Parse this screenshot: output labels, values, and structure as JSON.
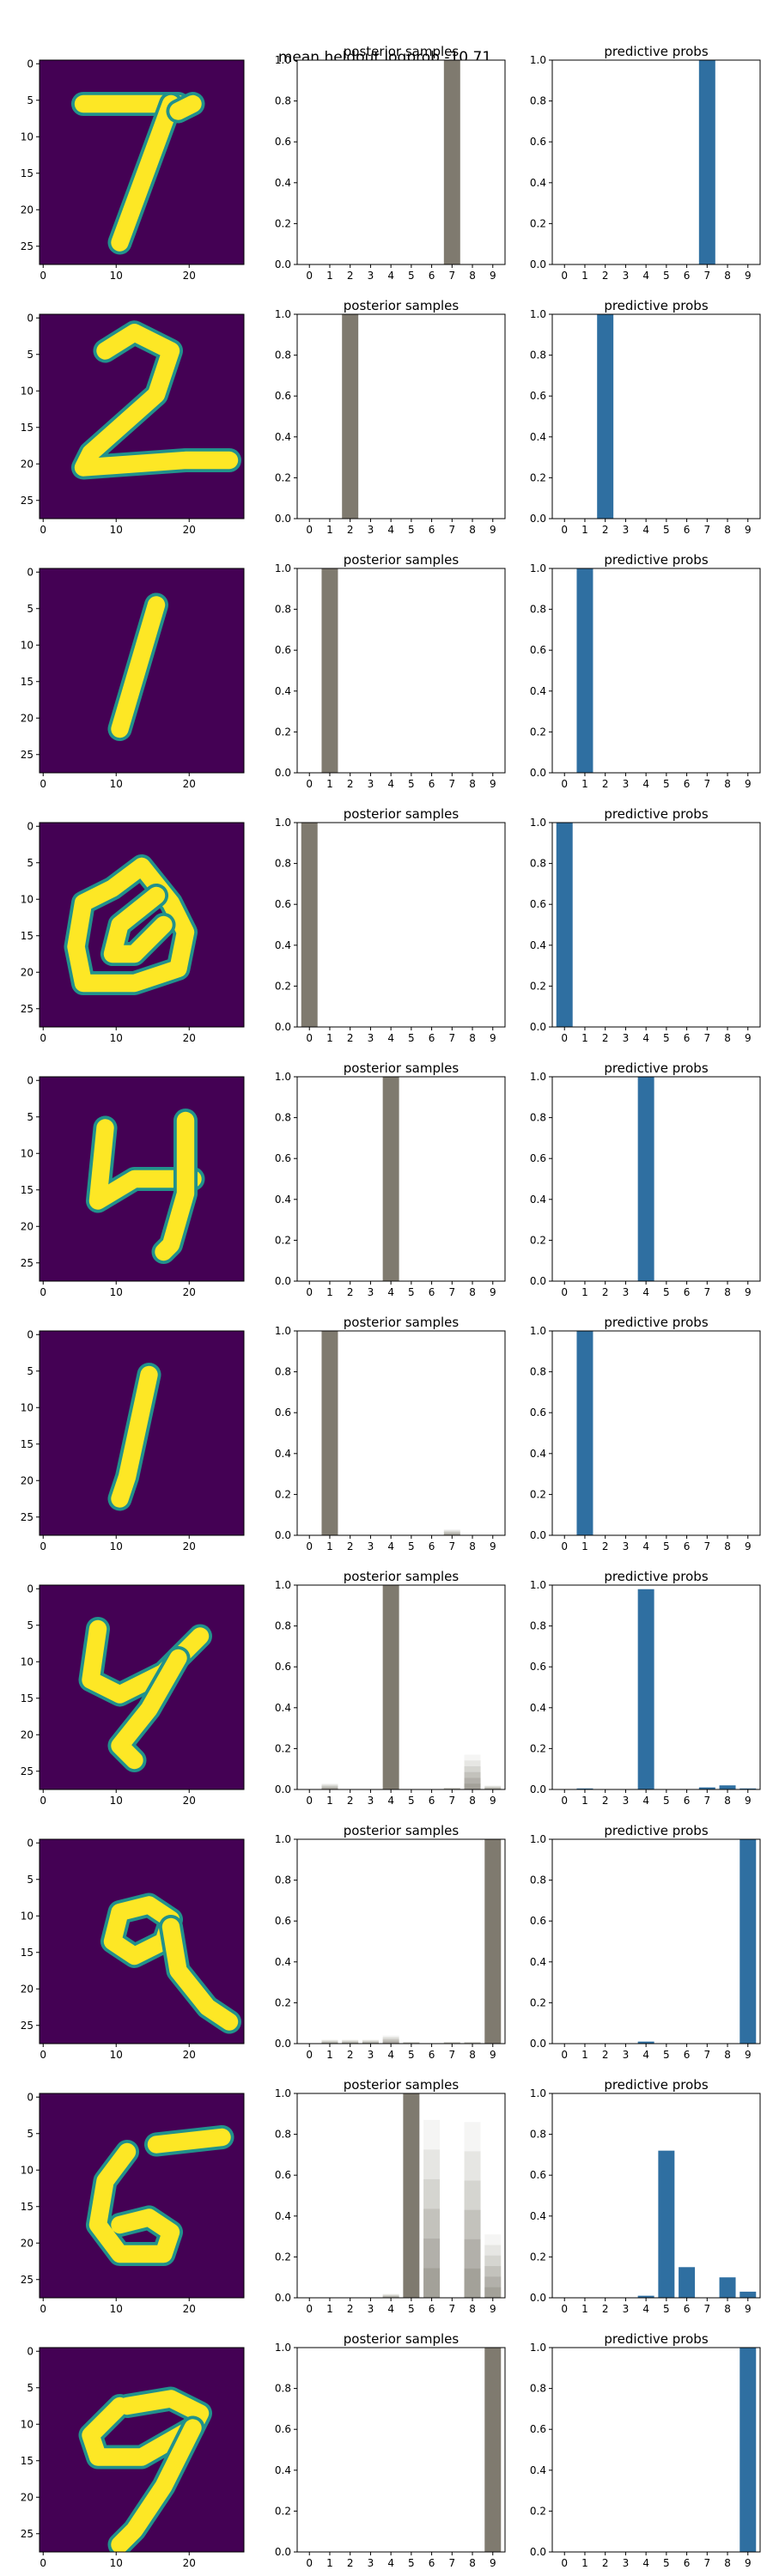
{
  "suptitle": "mean heldout logprob -10.71",
  "axis_style": {
    "image_x_ticks": [
      0,
      10,
      20
    ],
    "image_y_ticks": [
      0,
      5,
      10,
      15,
      20,
      25
    ],
    "bar_y_ticks": [
      "0.0",
      "0.2",
      "0.4",
      "0.6",
      "0.8",
      "1.0"
    ],
    "categories": [
      "0",
      "1",
      "2",
      "3",
      "4",
      "5",
      "6",
      "7",
      "8",
      "9"
    ]
  },
  "colors": {
    "digit_background": "#440154",
    "digit_foreground": "#fde725",
    "posterior_bar": "#7f7a6f",
    "predictive_bar": "#2f6fa1"
  },
  "chart_data": [
    {
      "row": 1,
      "digit": "7",
      "posterior_title": "posterior samples",
      "predictive_title": "predictive probs",
      "type": "bar",
      "ylim": [
        0,
        1
      ],
      "posterior": [
        0,
        0,
        0,
        0,
        0,
        0,
        0,
        1,
        0,
        0
      ],
      "predictive": [
        0,
        0,
        0,
        0,
        0,
        0,
        0,
        1,
        0,
        0
      ]
    },
    {
      "row": 2,
      "digit": "2",
      "posterior_title": "posterior samples",
      "predictive_title": "predictive probs",
      "type": "bar",
      "ylim": [
        0,
        1
      ],
      "posterior": [
        0,
        0,
        1,
        0,
        0,
        0,
        0,
        0,
        0,
        0
      ],
      "predictive": [
        0,
        0,
        1,
        0,
        0,
        0,
        0,
        0,
        0,
        0
      ]
    },
    {
      "row": 3,
      "digit": "1",
      "posterior_title": "posterior samples",
      "predictive_title": "predictive probs",
      "type": "bar",
      "ylim": [
        0,
        1
      ],
      "posterior": [
        0,
        1,
        0,
        0,
        0,
        0,
        0,
        0,
        0,
        0
      ],
      "predictive": [
        0,
        1,
        0,
        0,
        0,
        0,
        0,
        0,
        0,
        0
      ]
    },
    {
      "row": 4,
      "digit": "0",
      "posterior_title": "posterior samples",
      "predictive_title": "predictive probs",
      "type": "bar",
      "ylim": [
        0,
        1
      ],
      "posterior": [
        1,
        0,
        0,
        0,
        0,
        0,
        0,
        0,
        0,
        0
      ],
      "predictive": [
        1,
        0,
        0,
        0,
        0,
        0,
        0,
        0,
        0,
        0
      ]
    },
    {
      "row": 5,
      "digit": "4",
      "posterior_title": "posterior samples",
      "predictive_title": "predictive probs",
      "type": "bar",
      "ylim": [
        0,
        1
      ],
      "posterior": [
        0,
        0,
        0,
        0,
        1,
        0,
        0,
        0,
        0,
        0
      ],
      "predictive": [
        0,
        0,
        0,
        0,
        1,
        0,
        0,
        0,
        0,
        0
      ]
    },
    {
      "row": 6,
      "digit": "1",
      "posterior_title": "posterior samples",
      "predictive_title": "predictive probs",
      "type": "bar",
      "ylim": [
        0,
        1
      ],
      "posterior": [
        0,
        1,
        0,
        0,
        0,
        0,
        0,
        0.03,
        0,
        0
      ],
      "predictive": [
        0,
        1,
        0,
        0,
        0,
        0,
        0,
        0,
        0,
        0
      ]
    },
    {
      "row": 7,
      "digit": "4",
      "posterior_title": "posterior samples",
      "predictive_title": "predictive probs",
      "type": "bar",
      "ylim": [
        0,
        1
      ],
      "posterior": [
        0,
        0.03,
        0,
        0,
        1,
        0,
        0,
        0.01,
        0.17,
        0.02
      ],
      "predictive": [
        0,
        0.005,
        0,
        0,
        0.98,
        0,
        0,
        0.01,
        0.02,
        0.005
      ]
    },
    {
      "row": 8,
      "digit": "9",
      "posterior_title": "posterior samples",
      "predictive_title": "predictive probs",
      "type": "bar",
      "ylim": [
        0,
        1
      ],
      "posterior": [
        0,
        0.02,
        0.02,
        0.02,
        0.04,
        0.01,
        0,
        0.01,
        0.01,
        1
      ],
      "predictive": [
        0,
        0,
        0,
        0,
        0.01,
        0,
        0,
        0,
        0,
        1
      ]
    },
    {
      "row": 9,
      "digit": "6",
      "posterior_title": "posterior samples",
      "predictive_title": "predictive probs",
      "type": "bar",
      "ylim": [
        0,
        1
      ],
      "posterior": [
        0,
        0,
        0,
        0,
        0.02,
        1,
        0.87,
        0,
        0.86,
        0.31
      ],
      "predictive": [
        0,
        0,
        0,
        0,
        0.01,
        0.72,
        0.15,
        0,
        0.1,
        0.03
      ]
    },
    {
      "row": 10,
      "digit": "9",
      "posterior_title": "posterior samples",
      "predictive_title": "predictive probs",
      "type": "bar",
      "ylim": [
        0,
        1
      ],
      "posterior": [
        0,
        0,
        0,
        0,
        0,
        0,
        0,
        0,
        0,
        1
      ],
      "predictive": [
        0,
        0,
        0,
        0,
        0,
        0,
        0,
        0,
        0,
        1
      ]
    }
  ]
}
